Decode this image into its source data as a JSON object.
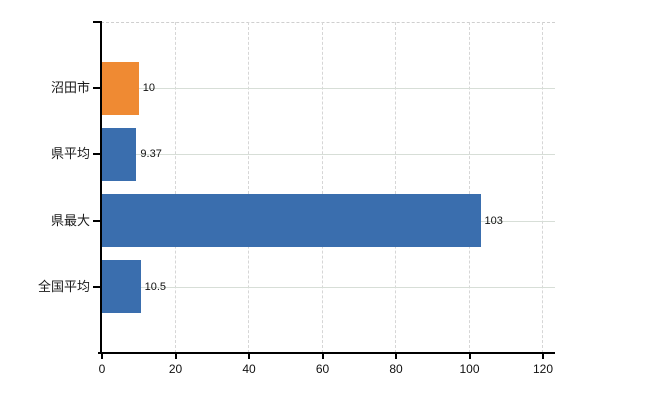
{
  "chart": {
    "background_color": "#ffffff",
    "axis_color": "#000000",
    "text_color": "#1a1a1a",
    "h_gridline_color": "#d7ded7",
    "v_gridline_color": "#d6d6d6",
    "top_border_color": "#cfcfcf"
  },
  "chart_data": {
    "type": "bar",
    "orientation": "horizontal",
    "title": "",
    "xlabel": "",
    "ylabel": "",
    "legend_position": "none",
    "grid": true,
    "categories": [
      "沼田市",
      "県平均",
      "県最大",
      "全国平均"
    ],
    "values": [
      10,
      9.37,
      103,
      10.5
    ],
    "value_labels": [
      "10",
      "9.37",
      "103",
      "10.5"
    ],
    "bar_colors": [
      "#EF8A33",
      "#3A6EAE",
      "#3A6EAE",
      "#3A6EAE"
    ],
    "highlight_color": "#EF8A33",
    "base_color": "#3A6EAE",
    "x_tick_values": [
      0,
      20,
      40,
      60,
      80,
      100,
      120
    ],
    "x_tick_labels": [
      "0",
      "20",
      "40",
      "60",
      "80",
      "100",
      "120"
    ],
    "xlim": [
      0,
      123.5
    ]
  }
}
